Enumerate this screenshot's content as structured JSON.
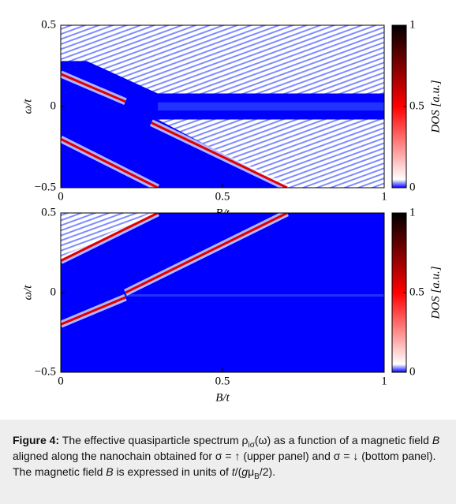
{
  "chart_data": [
    {
      "type": "heatmap",
      "xlabel": "B/t",
      "ylabel": "ω/t",
      "colorbar_label": "DOS [a.u.]",
      "xlim": [
        0,
        1
      ],
      "ylim": [
        -0.5,
        0.5
      ],
      "xticks": [
        0,
        0.5,
        1
      ],
      "yticks": [
        {
          "value": -0.5,
          "label": "−0.5"
        },
        0,
        0.5
      ],
      "clim": [
        0,
        1
      ],
      "cticks": [
        0,
        0.5,
        1
      ],
      "colormap": [
        {
          "value": 0,
          "color": "#0000ff"
        },
        {
          "value": 0.05,
          "color": "#ffffff"
        },
        {
          "value": 0.5,
          "color": "#ff0000"
        },
        {
          "value": 1,
          "color": "#000000"
        }
      ]
    },
    {
      "type": "heatmap",
      "xlabel": "B/t",
      "ylabel": "ω/t",
      "colorbar_label": "DOS [a.u.]",
      "xlim": [
        0,
        1
      ],
      "ylim": [
        -0.5,
        0.5
      ],
      "xticks": [
        0,
        0.5,
        1
      ],
      "yticks": [
        {
          "value": -0.5,
          "label": "−0.5"
        },
        0,
        0.5
      ],
      "clim": [
        0,
        1
      ],
      "cticks": [
        0,
        0.5,
        1
      ],
      "colormap": [
        {
          "value": 0,
          "color": "#0000ff"
        },
        {
          "value": 0.05,
          "color": "#ffffff"
        },
        {
          "value": 0.5,
          "color": "#ff0000"
        },
        {
          "value": 1,
          "color": "#000000"
        }
      ]
    }
  ],
  "caption": {
    "label": "Figure 4:",
    "runs": [
      {
        "text": " The effective quasiparticle spectrum ρ",
        "format": "normal"
      },
      {
        "text": "iσ",
        "format": "sub"
      },
      {
        "text": "(ω) as a function of a magnetic field ",
        "format": "normal"
      },
      {
        "text": "B",
        "format": "italic"
      },
      {
        "text": " aligned along the nanochain obtained for σ = ↑ (upper panel) and σ = ↓ (bottom panel). The magnetic field ",
        "format": "normal"
      },
      {
        "text": "B",
        "format": "italic"
      },
      {
        "text": " is expressed in units of ",
        "format": "normal"
      },
      {
        "text": "t",
        "format": "italic"
      },
      {
        "text": "/(",
        "format": "normal"
      },
      {
        "text": "g",
        "format": "italic"
      },
      {
        "text": "μ",
        "format": "normal"
      },
      {
        "text": "B",
        "format": "sub"
      },
      {
        "text": "/2).",
        "format": "normal"
      }
    ]
  }
}
